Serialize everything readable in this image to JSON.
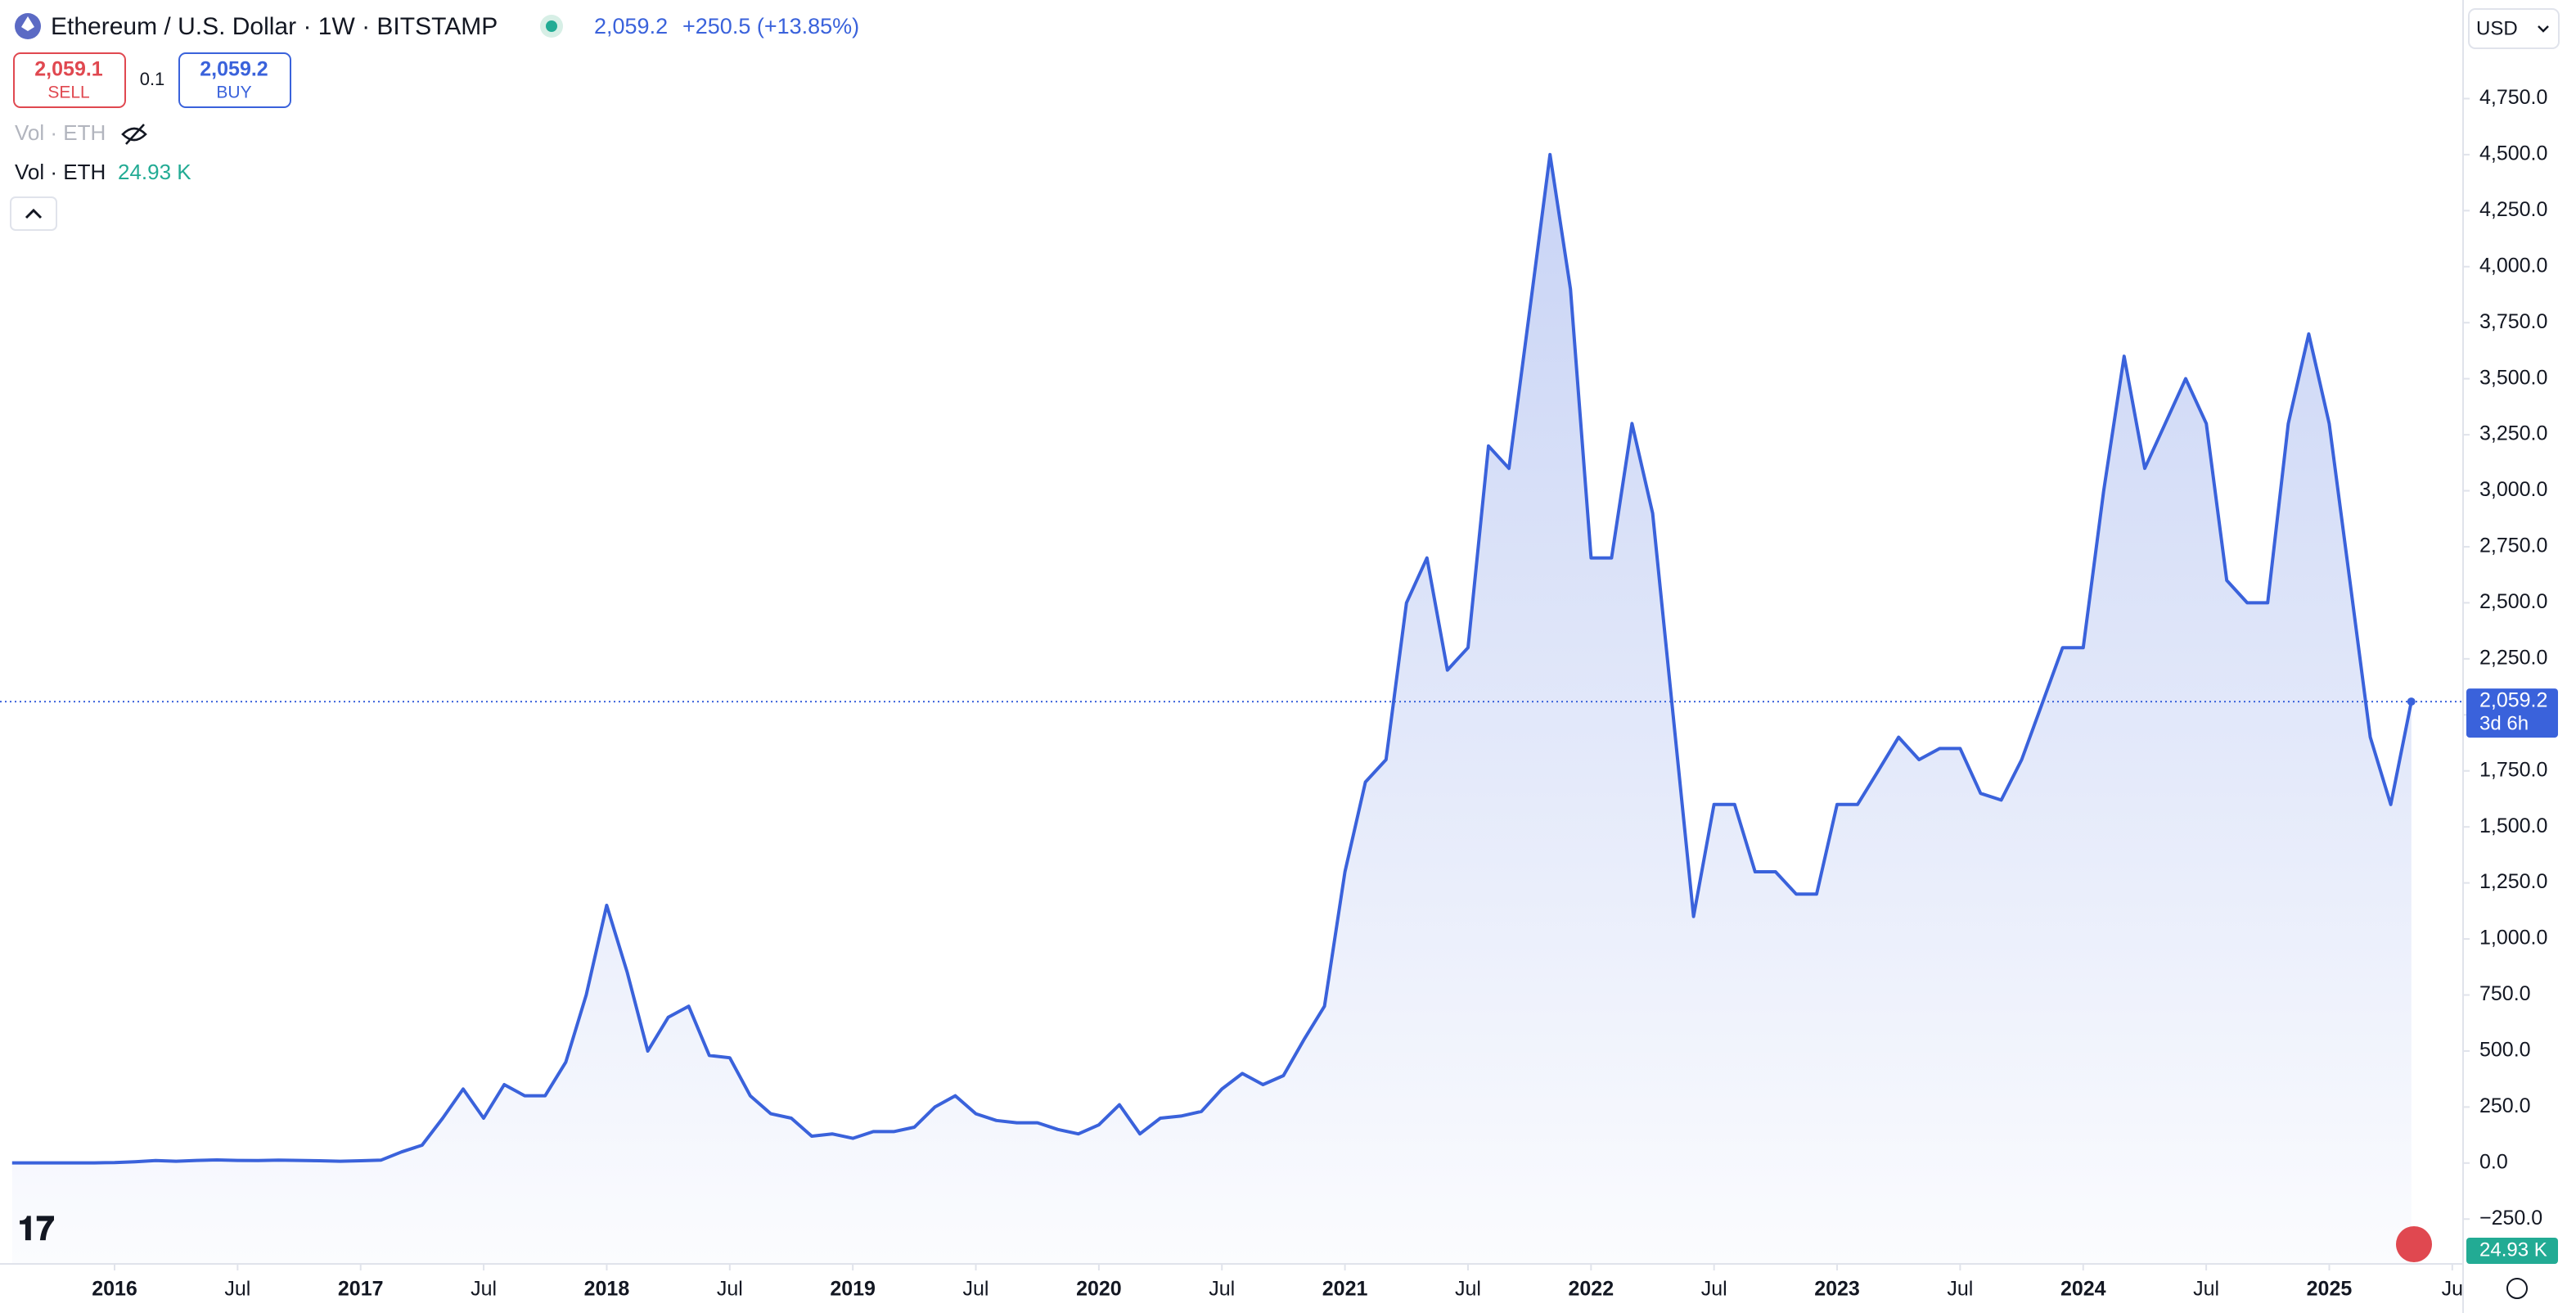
{
  "chart_data": {
    "type": "area",
    "title": "Ethereum / U.S. Dollar · 1W · BITSTAMP",
    "header_price": "2,059.2",
    "header_change": "+250.5 (+13.85%)",
    "sell_price": "2,059.1",
    "sell_label": "SELL",
    "quantity": "0.1",
    "buy_price": "2,059.2",
    "buy_label": "BUY",
    "volume_hidden_label": "Vol · ETH",
    "volume_label": "Vol · ETH",
    "volume_value": "24.93 K",
    "currency": "USD",
    "countdown": "3d 6h",
    "volume_badge": "24.93 K",
    "last_price": {
      "value": 2059.2,
      "label": "2,059.2"
    },
    "x": [
      "2015-08",
      "2015-09",
      "2015-10",
      "2015-11",
      "2015-12",
      "2016-01",
      "2016-02",
      "2016-03",
      "2016-04",
      "2016-05",
      "2016-06",
      "2016-07",
      "2016-08",
      "2016-09",
      "2016-10",
      "2016-11",
      "2016-12",
      "2017-01",
      "2017-02",
      "2017-03",
      "2017-04",
      "2017-05",
      "2017-06",
      "2017-07",
      "2017-08",
      "2017-09",
      "2017-10",
      "2017-11",
      "2017-12",
      "2018-01",
      "2018-02",
      "2018-03",
      "2018-04",
      "2018-05",
      "2018-06",
      "2018-07",
      "2018-08",
      "2018-09",
      "2018-10",
      "2018-11",
      "2018-12",
      "2019-01",
      "2019-02",
      "2019-03",
      "2019-04",
      "2019-05",
      "2019-06",
      "2019-07",
      "2019-08",
      "2019-09",
      "2019-10",
      "2019-11",
      "2019-12",
      "2020-01",
      "2020-02",
      "2020-03",
      "2020-04",
      "2020-05",
      "2020-06",
      "2020-07",
      "2020-08",
      "2020-09",
      "2020-10",
      "2020-11",
      "2020-12",
      "2021-01",
      "2021-02",
      "2021-03",
      "2021-04",
      "2021-05",
      "2021-06",
      "2021-07",
      "2021-08",
      "2021-09",
      "2021-10",
      "2021-11",
      "2021-12",
      "2022-01",
      "2022-02",
      "2022-03",
      "2022-04",
      "2022-05",
      "2022-06",
      "2022-07",
      "2022-08",
      "2022-09",
      "2022-10",
      "2022-11",
      "2022-12",
      "2023-01",
      "2023-02",
      "2023-03",
      "2023-04",
      "2023-05",
      "2023-06",
      "2023-07",
      "2023-08",
      "2023-09",
      "2023-10",
      "2023-11",
      "2023-12",
      "2024-01",
      "2024-02",
      "2024-03",
      "2024-04",
      "2024-05",
      "2024-06",
      "2024-07",
      "2024-08",
      "2024-09",
      "2024-10",
      "2024-11",
      "2024-12",
      "2025-01",
      "2025-02",
      "2025-03",
      "2025-04",
      "2025-05"
    ],
    "series": [
      {
        "name": "ETHUSD",
        "color": "#3a62db",
        "values": [
          1,
          1,
          1,
          1,
          1,
          2,
          6,
          11,
          8,
          12,
          14,
          12,
          11,
          13,
          12,
          10,
          8,
          10,
          13,
          50,
          80,
          200,
          330,
          200,
          350,
          300,
          300,
          450,
          750,
          1150,
          850,
          500,
          650,
          700,
          480,
          470,
          300,
          220,
          200,
          120,
          130,
          110,
          140,
          140,
          160,
          250,
          300,
          220,
          190,
          180,
          180,
          150,
          130,
          170,
          260,
          130,
          200,
          210,
          230,
          330,
          400,
          350,
          390,
          550,
          700,
          1300,
          1700,
          1800,
          2500,
          2700,
          2200,
          2300,
          3200,
          3100,
          3800,
          4500,
          3900,
          2700,
          2700,
          3300,
          2900,
          2000,
          1100,
          1600,
          1600,
          1300,
          1300,
          1200,
          1200,
          1600,
          1600,
          1750,
          1900,
          1800,
          1850,
          1850,
          1650,
          1620,
          1800,
          2050,
          2300,
          2300,
          3000,
          3600,
          3100,
          3300,
          3500,
          3300,
          2600,
          2500,
          2500,
          3300,
          3700,
          3300,
          2600,
          1900,
          1600,
          2059.2
        ]
      }
    ],
    "ylim": [
      -450,
      5190
    ],
    "yticks": [
      {
        "value": -250,
        "label": "−250.0"
      },
      {
        "value": 0,
        "label": "0.0"
      },
      {
        "value": 250,
        "label": "250.0"
      },
      {
        "value": 500,
        "label": "500.0"
      },
      {
        "value": 750,
        "label": "750.0"
      },
      {
        "value": 1000,
        "label": "1,000.0"
      },
      {
        "value": 1250,
        "label": "1,250.0"
      },
      {
        "value": 1500,
        "label": "1,500.0"
      },
      {
        "value": 1750,
        "label": "1,750.0"
      },
      {
        "value": 2000,
        "label": "2,000.0"
      },
      {
        "value": 2250,
        "label": "2,250.0"
      },
      {
        "value": 2500,
        "label": "2,500.0"
      },
      {
        "value": 2750,
        "label": "2,750.0"
      },
      {
        "value": 3000,
        "label": "3,000.0"
      },
      {
        "value": 3250,
        "label": "3,250.0"
      },
      {
        "value": 3500,
        "label": "3,500.0"
      },
      {
        "value": 3750,
        "label": "3,750.0"
      },
      {
        "value": 4000,
        "label": "4,000.0"
      },
      {
        "value": 4250,
        "label": "4,250.0"
      },
      {
        "value": 4500,
        "label": "4,500.0"
      },
      {
        "value": 4750,
        "label": "4,750.0"
      }
    ],
    "xticks": [
      {
        "value": "2016-01",
        "label": "2016"
      },
      {
        "value": "2016-07",
        "label": "Jul"
      },
      {
        "value": "2017-01",
        "label": "2017"
      },
      {
        "value": "2017-07",
        "label": "Jul"
      },
      {
        "value": "2018-01",
        "label": "2018"
      },
      {
        "value": "2018-07",
        "label": "Jul"
      },
      {
        "value": "2019-01",
        "label": "2019"
      },
      {
        "value": "2019-07",
        "label": "Jul"
      },
      {
        "value": "2020-01",
        "label": "2020"
      },
      {
        "value": "2020-07",
        "label": "Jul"
      },
      {
        "value": "2021-01",
        "label": "2021"
      },
      {
        "value": "2021-07",
        "label": "Jul"
      },
      {
        "value": "2022-01",
        "label": "2022"
      },
      {
        "value": "2022-07",
        "label": "Jul"
      },
      {
        "value": "2023-01",
        "label": "2023"
      },
      {
        "value": "2023-07",
        "label": "Jul"
      },
      {
        "value": "2024-01",
        "label": "2024"
      },
      {
        "value": "2024-07",
        "label": "Jul"
      },
      {
        "value": "2025-01",
        "label": "2025"
      },
      {
        "value": "2025-07",
        "label": "Ju"
      }
    ],
    "grid": false
  }
}
